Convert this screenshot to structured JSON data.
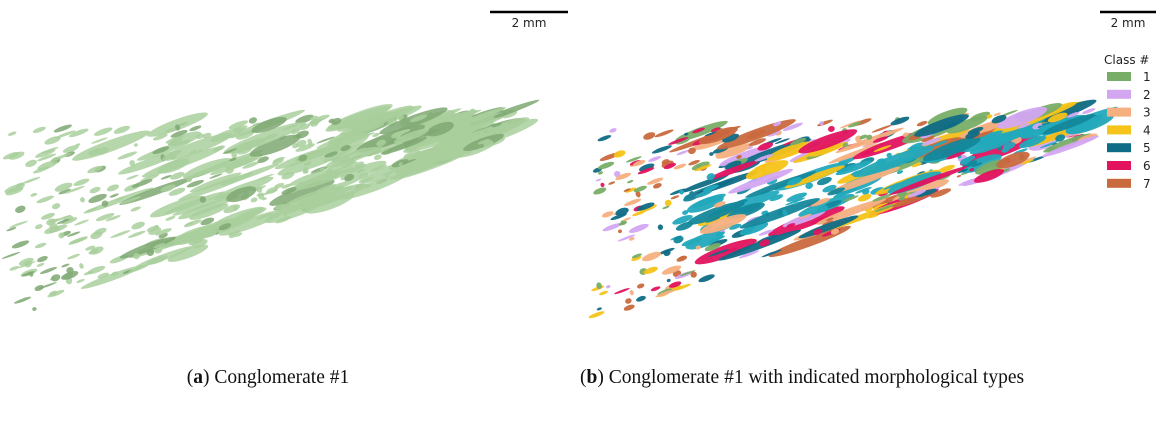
{
  "panels": [
    {
      "scale_bar": "2 mm",
      "caption": {
        "parts": [
          "(",
          "a",
          ") Conglomerate #1"
        ]
      }
    },
    {
      "scale_bar": "2 mm",
      "legend": {
        "title": "Class #",
        "items": [
          {
            "label": "1",
            "color": "#78ad67"
          },
          {
            "label": "2",
            "color": "#d3a6f2"
          },
          {
            "label": "3",
            "color": "#f6b07f"
          },
          {
            "label": "4",
            "color": "#f6c319"
          },
          {
            "label": "5",
            "color": "#0f6c86"
          },
          {
            "label": "6",
            "color": "#e2135f"
          },
          {
            "label": "7",
            "color": "#c9693e"
          }
        ]
      },
      "caption": {
        "parts": [
          "(",
          "b",
          ") Conglomerate #1 with indicated morphological types"
        ]
      }
    }
  ]
}
